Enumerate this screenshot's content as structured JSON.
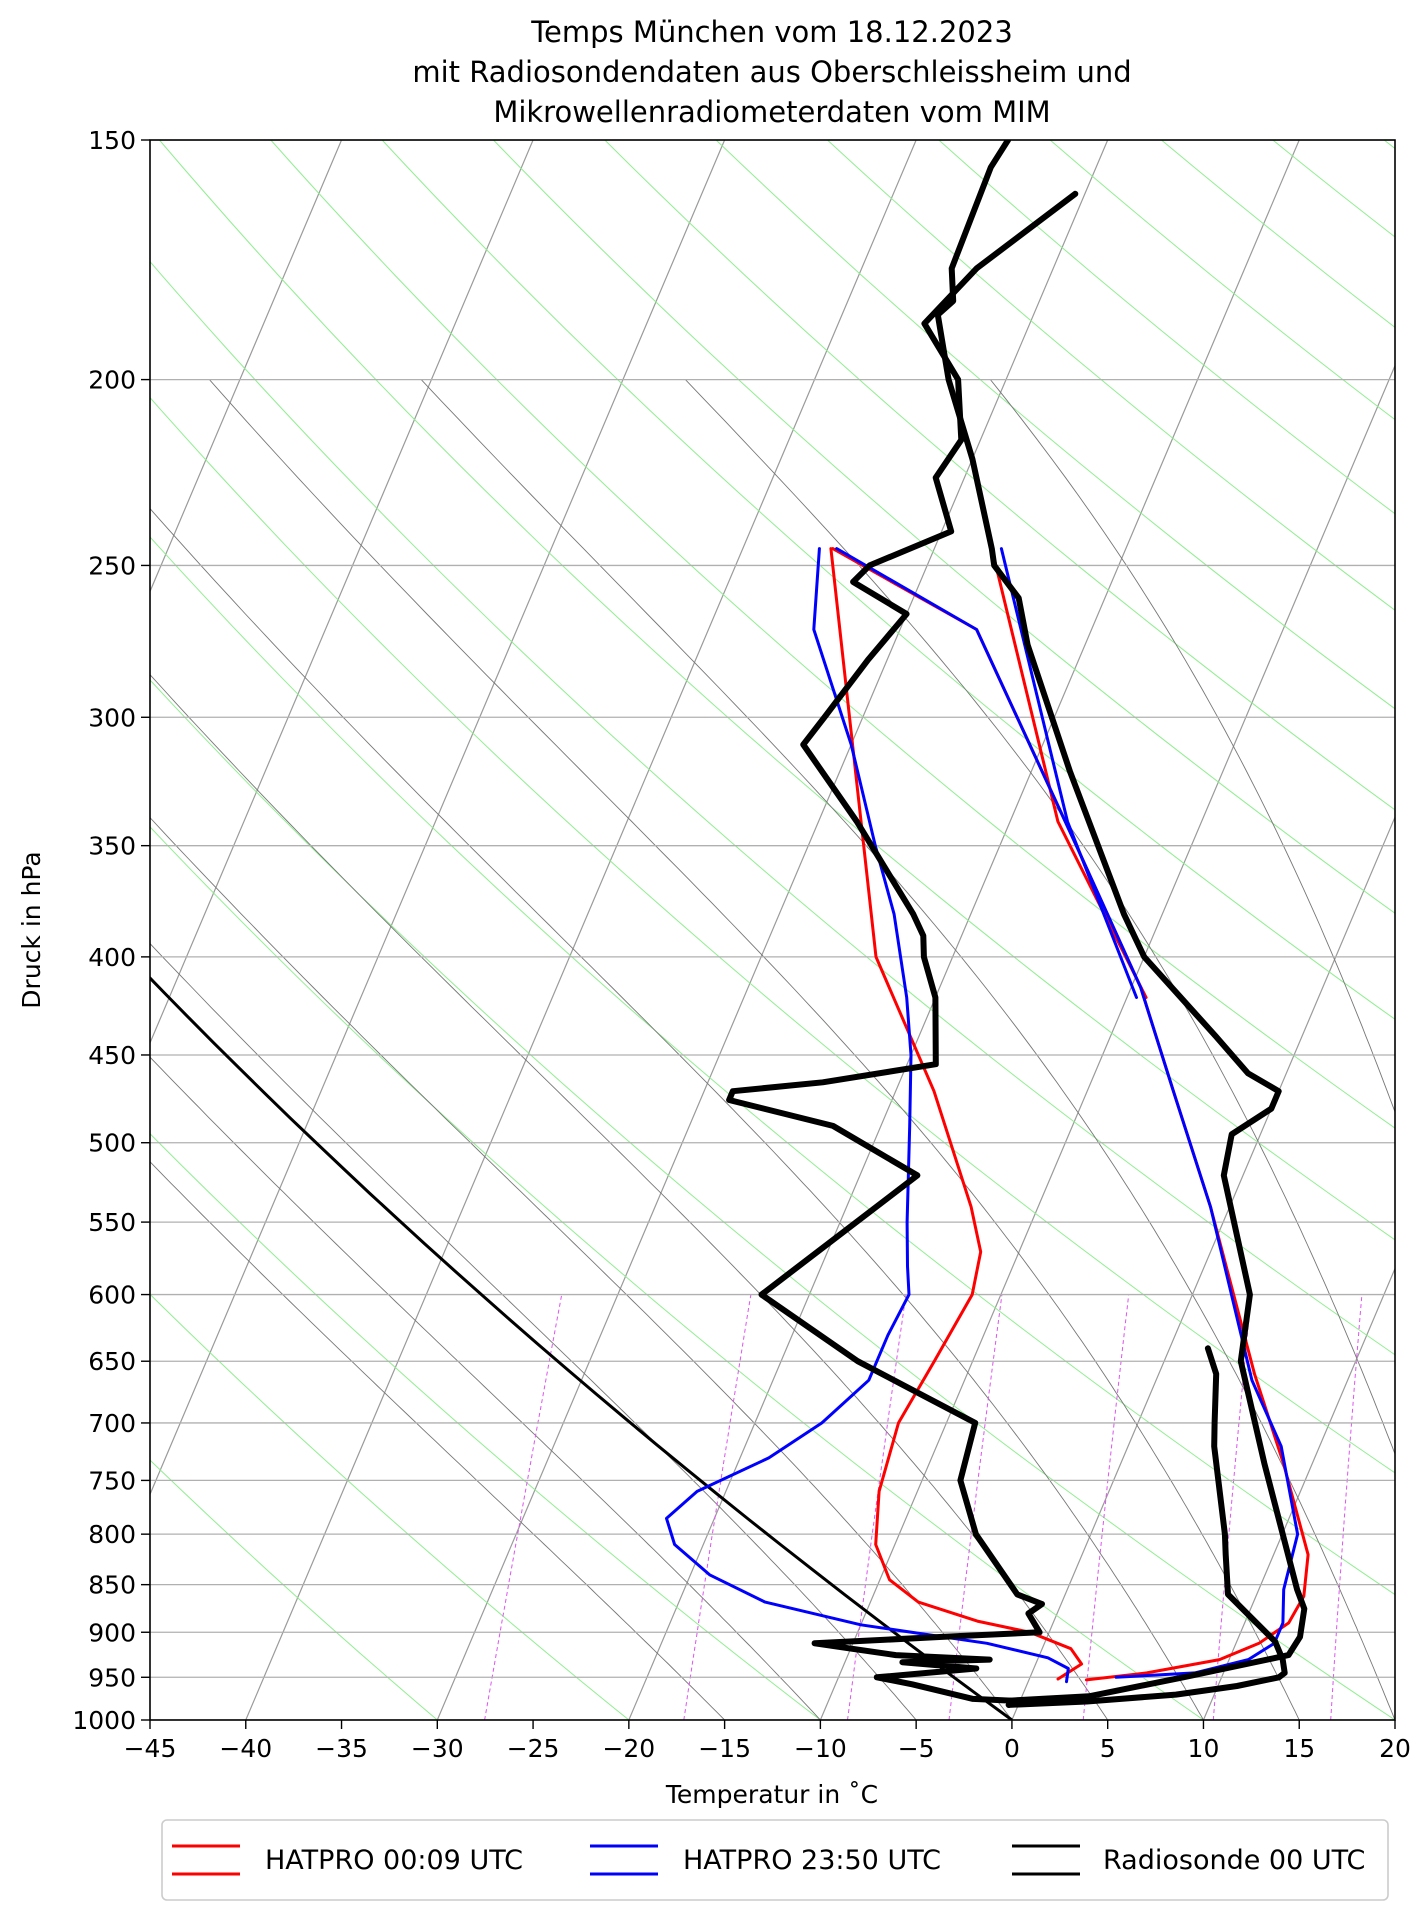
{
  "chart_data": {
    "type": "line",
    "title": [
      "Temps München vom 18.12.2023",
      "mit Radiosondendaten aus Oberschleissheim und",
      "Mikrowellenradiometerdaten vom MIM"
    ],
    "xlabel": "Temperatur in $^\\circ$C",
    "xlabel_display": "Temperatur in ˚C",
    "ylabel": "Druck in hPa",
    "xlim": [
      -45,
      20
    ],
    "ylim": [
      1000,
      150
    ],
    "y_scale": "log",
    "x_ticks": [
      -45,
      -40,
      -35,
      -30,
      -25,
      -20,
      -15,
      -10,
      -5,
      0,
      5,
      10,
      15,
      20
    ],
    "x_tick_labels": [
      "−45",
      "−40",
      "−35",
      "−30",
      "−25",
      "−20",
      "−15",
      "−10",
      "−5",
      "0",
      "5",
      "10",
      "15",
      "20"
    ],
    "y_ticks": [
      150,
      200,
      250,
      300,
      350,
      400,
      450,
      500,
      550,
      600,
      650,
      700,
      750,
      800,
      850,
      900,
      950,
      1000
    ],
    "y_tick_labels": [
      "150",
      "200",
      "250",
      "300",
      "350",
      "400",
      "450",
      "500",
      "550",
      "600",
      "650",
      "700",
      "750",
      "800",
      "850",
      "900",
      "950",
      "1000"
    ],
    "grid": true,
    "legend_position": "bottom",
    "series": [
      {
        "name": "HATPRO 00:09 UTC",
        "color": "#ff0000",
        "profiles": [
          [
            [
              3.0,
              953
            ],
            [
              6.0,
              945
            ],
            [
              9.5,
              930
            ],
            [
              11.2,
              912
            ],
            [
              12.3,
              890
            ],
            [
              12.5,
              862
            ],
            [
              11.8,
              820
            ],
            [
              8.5,
              735
            ],
            [
              5.0,
              660
            ],
            [
              -1.0,
              540
            ],
            [
              -5.5,
              470
            ],
            [
              -9.5,
              415
            ],
            [
              -16.0,
              350
            ],
            [
              -26.0,
              270
            ],
            [
              -35.3,
              245
            ]
          ],
          [
            [
              1.5,
              952
            ],
            [
              2.4,
              935
            ],
            [
              1.5,
              918
            ],
            [
              -1.0,
              900
            ],
            [
              -4.0,
              888
            ],
            [
              -7.5,
              868
            ],
            [
              -9.5,
              845
            ],
            [
              -11.0,
              810
            ],
            [
              -12.0,
              760
            ],
            [
              -12.5,
              700
            ],
            [
              -12.0,
              650
            ],
            [
              -11.5,
              600
            ],
            [
              -12.0,
              570
            ],
            [
              -13.5,
              540
            ],
            [
              -18.0,
              470
            ],
            [
              -24.0,
              400
            ],
            [
              -35.4,
              245
            ]
          ],
          [
            [
              -9.0,
              420
            ],
            [
              -17.5,
              340
            ],
            [
              -27.0,
              245
            ]
          ]
        ]
      },
      {
        "name": "HATPRO 23:50 UTC",
        "color": "#0000ff",
        "profiles": [
          [
            [
              4.5,
              950
            ],
            [
              8.5,
              945
            ],
            [
              11.0,
              930
            ],
            [
              12.0,
              912
            ],
            [
              12.0,
              890
            ],
            [
              11.3,
              855
            ],
            [
              10.8,
              800
            ],
            [
              8.0,
              720
            ],
            [
              5.0,
              665
            ],
            [
              -1.0,
              540
            ],
            [
              -5.5,
              470
            ],
            [
              -9.5,
              415
            ],
            [
              -16.0,
              350
            ],
            [
              -26.0,
              270
            ],
            [
              -35.1,
              245
            ]
          ],
          [
            [
              2.0,
              955
            ],
            [
              1.8,
              940
            ],
            [
              0.5,
              928
            ],
            [
              -3.0,
              912
            ],
            [
              -10.0,
              892
            ],
            [
              -15.5,
              868
            ],
            [
              -19.0,
              840
            ],
            [
              -21.5,
              810
            ],
            [
              -22.5,
              785
            ],
            [
              -21.5,
              760
            ],
            [
              -18.5,
              730
            ],
            [
              -16.5,
              700
            ],
            [
              -15.0,
              665
            ],
            [
              -15.0,
              630
            ],
            [
              -14.8,
              600
            ],
            [
              -15.5,
              580
            ],
            [
              -16.5,
              550
            ],
            [
              -18.5,
              490
            ],
            [
              -20.0,
              450
            ],
            [
              -21.5,
              420
            ],
            [
              -24.0,
              380
            ],
            [
              -26.5,
              350
            ],
            [
              -30.0,
              310
            ],
            [
              -34.5,
              270
            ],
            [
              -36.0,
              245
            ]
          ],
          [
            [
              -9.5,
              420
            ],
            [
              -17.0,
              340
            ],
            [
              -26.5,
              245
            ]
          ]
        ]
      },
      {
        "name": "Radiosonde 00 UTC",
        "color": "#000000",
        "profiles": [
          [
            [
              -0.5,
              982
            ],
            [
              -0.5,
              977
            ],
            [
              3.5,
              972
            ],
            [
              8.0,
              950
            ],
            [
              13.0,
              925
            ],
            [
              13.2,
              905
            ],
            [
              12.8,
              875
            ],
            [
              12.0,
              855
            ],
            [
              7.5,
              735
            ],
            [
              4.0,
              650
            ],
            [
              3.0,
              600
            ],
            [
              -1.0,
              520
            ],
            [
              -1.5,
              495
            ],
            [
              0.0,
              480
            ],
            [
              0.0,
              470
            ],
            [
              -2.0,
              460
            ],
            [
              -4.5,
              440
            ],
            [
              -10.0,
              400
            ],
            [
              -12.0,
              380
            ],
            [
              -18.0,
              320
            ],
            [
              -23.0,
              275
            ],
            [
              -24.5,
              260
            ],
            [
              -26.5,
              250
            ],
            [
              -27.0,
              245
            ],
            [
              -30.0,
              220
            ],
            [
              -33.0,
              200
            ],
            [
              -35.0,
              185
            ],
            [
              -34.5,
              182
            ],
            [
              -35.3,
              175
            ],
            [
              -35.4,
              165
            ],
            [
              -35.5,
              155
            ],
            [
              -35.2,
              150
            ]
          ],
          [
            [
              -0.5,
              982
            ],
            [
              -0.5,
              977
            ],
            [
              -2.5,
              975
            ],
            [
              -6.0,
              958
            ],
            [
              -8.0,
              950
            ],
            [
              -3.0,
              940
            ],
            [
              -7.0,
              933
            ],
            [
              -2.5,
              930
            ],
            [
              -7.5,
              925
            ],
            [
              -12.0,
              912
            ],
            [
              -5.5,
              905
            ],
            [
              -0.5,
              900
            ],
            [
              -1.5,
              880
            ],
            [
              -1.0,
              870
            ],
            [
              -2.5,
              860
            ],
            [
              -6.0,
              800
            ],
            [
              -8.0,
              750
            ],
            [
              -8.5,
              700
            ],
            [
              -16.0,
              650
            ],
            [
              -22.5,
              600
            ],
            [
              -17.0,
              520
            ],
            [
              -22.5,
              490
            ],
            [
              -28.5,
              475
            ],
            [
              -28.5,
              470
            ],
            [
              -24.0,
              465
            ],
            [
              -18.5,
              455
            ],
            [
              -20.0,
              420
            ],
            [
              -21.5,
              400
            ],
            [
              -22.0,
              390
            ],
            [
              -23.0,
              380
            ],
            [
              -28.0,
              340
            ],
            [
              -32.5,
              310
            ],
            [
              -32.0,
              300
            ],
            [
              -31.0,
              280
            ],
            [
              -30.0,
              265
            ],
            [
              -33.5,
              255
            ],
            [
              -33.0,
              250
            ],
            [
              -29.5,
              240
            ],
            [
              -31.5,
              225
            ],
            [
              -31.0,
              215
            ],
            [
              -32.5,
              200
            ],
            [
              -35.5,
              187
            ],
            [
              -34.0,
              175
            ],
            [
              -30.5,
              160
            ]
          ],
          [
            [
              -0.5,
              982
            ],
            [
              3.5,
              978
            ],
            [
              8.0,
              970
            ],
            [
              11.0,
              960
            ],
            [
              13.0,
              950
            ],
            [
              13.2,
              945
            ],
            [
              12.8,
              930
            ],
            [
              12.0,
              910
            ],
            [
              8.5,
              860
            ],
            [
              7.5,
              820
            ],
            [
              7.0,
              800
            ],
            [
              4.5,
              720
            ],
            [
              4.0,
              700
            ],
            [
              3.0,
              660
            ],
            [
              2.0,
              640
            ]
          ]
        ]
      }
    ]
  },
  "legend": {
    "items": [
      {
        "label": "HATPRO 00:09 UTC",
        "color": "#ff0000"
      },
      {
        "label": "HATPRO 23:50 UTC",
        "color": "#0000ff"
      },
      {
        "label": "Radiosonde 00 UTC",
        "color": "#000000"
      }
    ]
  }
}
